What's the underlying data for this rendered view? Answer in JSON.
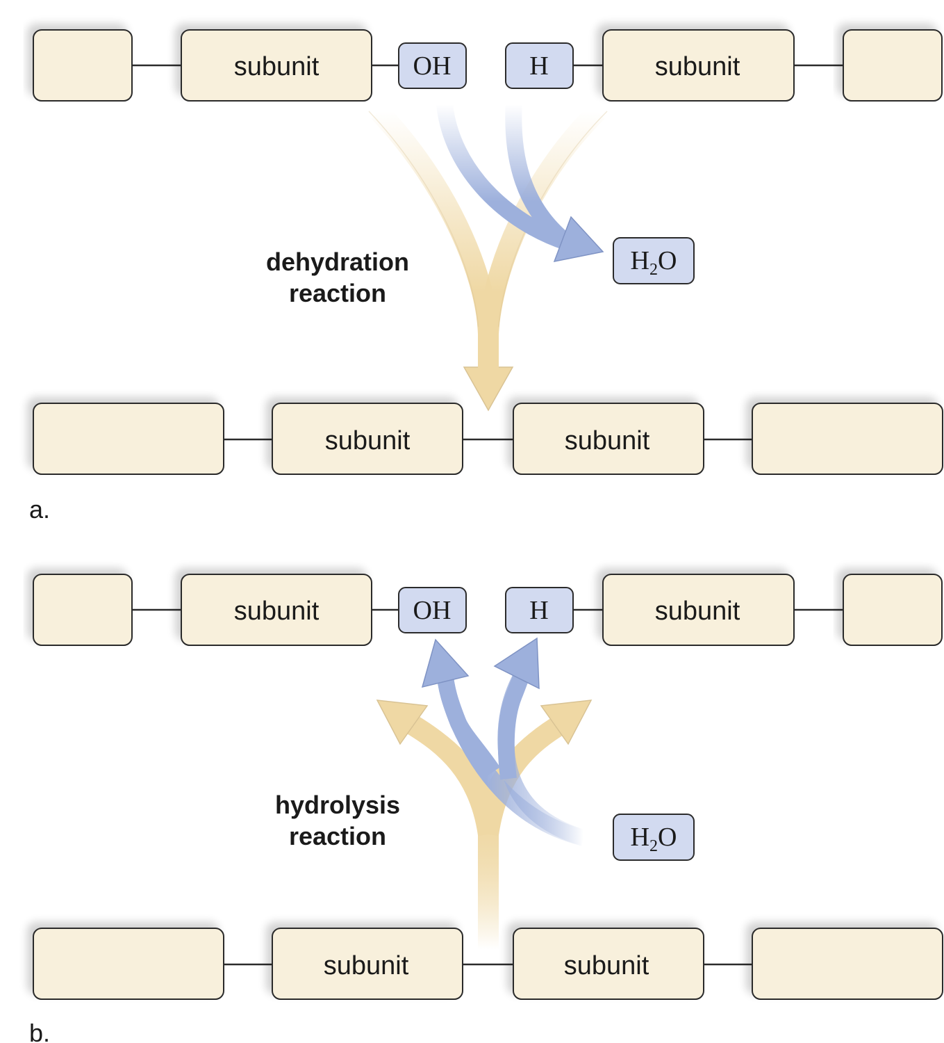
{
  "panels": [
    {
      "letter": "a.",
      "reaction_label": [
        "dehydration",
        "reaction"
      ],
      "top_subunit_label": "subunit",
      "hydroxyl": "OH",
      "hydrogen": "H",
      "water": {
        "main": "H",
        "sub": "2",
        "tail": "O"
      },
      "bottom_subunit_label": "subunit"
    },
    {
      "letter": "b.",
      "reaction_label": [
        "hydrolysis",
        "reaction"
      ],
      "top_subunit_label": "subunit",
      "hydroxyl": "OH",
      "hydrogen": "H",
      "water": {
        "main": "H",
        "sub": "2",
        "tail": "O"
      },
      "bottom_subunit_label": "subunit"
    }
  ],
  "colors": {
    "subunit_fill": "#f8f0dc",
    "water_group_fill": "#d2daf0",
    "tan_arrow": "#efd8a4",
    "blue_arrow": "#9db0dc"
  }
}
